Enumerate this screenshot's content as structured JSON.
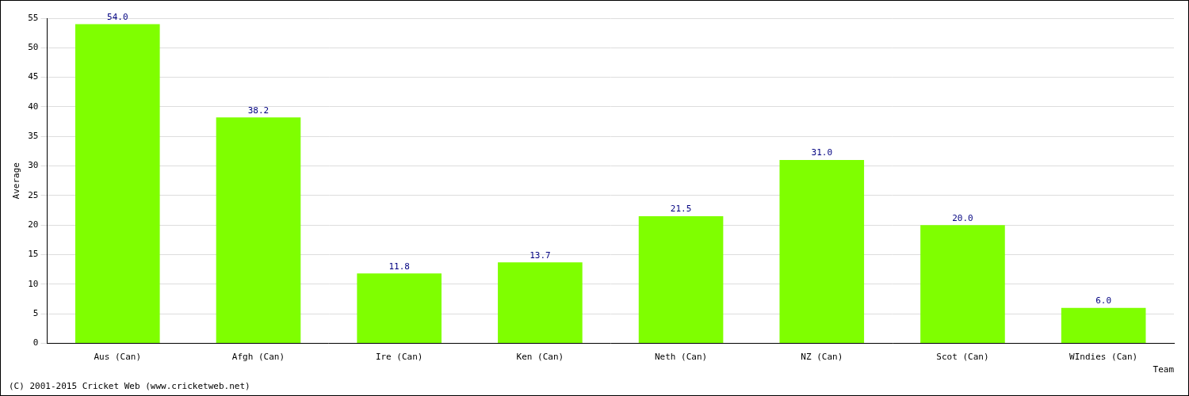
{
  "chart_data": {
    "type": "bar",
    "categories": [
      "Aus (Can)",
      "Afgh (Can)",
      "Ire (Can)",
      "Ken (Can)",
      "Neth (Can)",
      "NZ (Can)",
      "Scot (Can)",
      "WIndies (Can)"
    ],
    "values": [
      54.0,
      38.2,
      11.8,
      13.7,
      21.5,
      31.0,
      20.0,
      6.0
    ],
    "value_labels": [
      "54.0",
      "38.2",
      "11.8",
      "13.7",
      "21.5",
      "31.0",
      "20.0",
      "6.0"
    ],
    "data_labels": true,
    "color": "#7fff00",
    "x_label": "Team",
    "y_label": "Average",
    "ylim": [
      0,
      55
    ],
    "yticks": [
      0,
      5,
      10,
      15,
      20,
      25,
      30,
      35,
      40,
      45,
      50,
      55
    ],
    "grid": true,
    "annotations": [
      "(C) 2001-2015 Cricket Web (www.cricketweb.net)"
    ]
  }
}
